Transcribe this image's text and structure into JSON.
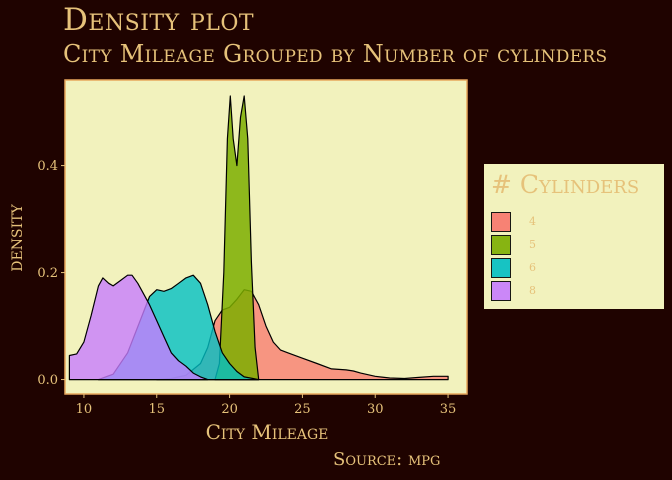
{
  "title": "Density plot",
  "subtitle": "City Mileage Grouped by Number of cylinders",
  "caption": "Source: mpg",
  "legend": {
    "title": "# Cylinders",
    "placement": "right",
    "items": [
      {
        "label": "4",
        "color": "#f8766d"
      },
      {
        "label": "5",
        "color": "#7cae00"
      },
      {
        "label": "6",
        "color": "#00bfc4"
      },
      {
        "label": "8",
        "color": "#c77cff"
      }
    ]
  },
  "colors": {
    "background": "#1f0300",
    "panel": "#f2f2bd",
    "text": "#e6c27a"
  },
  "chart_data": {
    "type": "area",
    "title": "Density plot",
    "subtitle": "City Mileage Grouped by Number of cylinders",
    "xlabel": "City Mileage",
    "ylabel": "density",
    "xlim": [
      8.7,
      36.3
    ],
    "ylim": [
      -0.027,
      0.56
    ],
    "xticks": [
      10,
      15,
      20,
      25,
      30,
      35
    ],
    "yticks": [
      0.0,
      0.2,
      0.4
    ],
    "ytick_labels": [
      "0.0",
      "0.2",
      "0.4"
    ],
    "grid": false,
    "series": [
      {
        "name": "4",
        "color": "#f8766d",
        "opacity": 0.75,
        "points": [
          [
            15,
            0
          ],
          [
            16,
            0.002
          ],
          [
            17,
            0.008
          ],
          [
            18,
            0.03
          ],
          [
            18.5,
            0.06
          ],
          [
            19,
            0.11
          ],
          [
            19.5,
            0.13
          ],
          [
            20,
            0.135
          ],
          [
            20.5,
            0.15
          ],
          [
            21,
            0.168
          ],
          [
            21.5,
            0.165
          ],
          [
            22,
            0.14
          ],
          [
            22.5,
            0.1
          ],
          [
            23,
            0.07
          ],
          [
            23.5,
            0.055
          ],
          [
            24,
            0.05
          ],
          [
            25,
            0.04
          ],
          [
            26,
            0.03
          ],
          [
            27,
            0.02
          ],
          [
            28,
            0.018
          ],
          [
            28.5,
            0.016
          ],
          [
            29,
            0.012
          ],
          [
            30,
            0.006
          ],
          [
            31,
            0.003
          ],
          [
            32,
            0.002
          ],
          [
            33,
            0.004
          ],
          [
            34,
            0.006
          ],
          [
            35,
            0.006
          ]
        ]
      },
      {
        "name": "5",
        "color": "#7cae00",
        "opacity": 0.85,
        "points": [
          [
            19,
            0
          ],
          [
            19.3,
            0.03
          ],
          [
            19.6,
            0.2
          ],
          [
            19.85,
            0.45
          ],
          [
            20.05,
            0.53
          ],
          [
            20.25,
            0.45
          ],
          [
            20.5,
            0.4
          ],
          [
            20.75,
            0.49
          ],
          [
            21,
            0.53
          ],
          [
            21.25,
            0.45
          ],
          [
            21.5,
            0.22
          ],
          [
            21.75,
            0.06
          ],
          [
            22,
            0
          ]
        ]
      },
      {
        "name": "6",
        "color": "#00bfc4",
        "opacity": 0.8,
        "points": [
          [
            11,
            0
          ],
          [
            12,
            0.01
          ],
          [
            13,
            0.05
          ],
          [
            14,
            0.12
          ],
          [
            14.5,
            0.155
          ],
          [
            15,
            0.168
          ],
          [
            15.5,
            0.165
          ],
          [
            16,
            0.17
          ],
          [
            16.5,
            0.18
          ],
          [
            17,
            0.19
          ],
          [
            17.5,
            0.195
          ],
          [
            18,
            0.18
          ],
          [
            18.5,
            0.14
          ],
          [
            19,
            0.09
          ],
          [
            19.5,
            0.05
          ],
          [
            20,
            0.03
          ],
          [
            20.5,
            0.015
          ],
          [
            21,
            0.005
          ],
          [
            22,
            0
          ]
        ]
      },
      {
        "name": "8",
        "color": "#c77cff",
        "opacity": 0.8,
        "points": [
          [
            9,
            0.045
          ],
          [
            9.5,
            0.048
          ],
          [
            10,
            0.07
          ],
          [
            10.5,
            0.12
          ],
          [
            11,
            0.175
          ],
          [
            11.3,
            0.19
          ],
          [
            11.7,
            0.18
          ],
          [
            12,
            0.175
          ],
          [
            12.5,
            0.185
          ],
          [
            13,
            0.195
          ],
          [
            13.3,
            0.195
          ],
          [
            13.7,
            0.18
          ],
          [
            14,
            0.165
          ],
          [
            14.5,
            0.14
          ],
          [
            15,
            0.11
          ],
          [
            15.5,
            0.08
          ],
          [
            16,
            0.05
          ],
          [
            16.5,
            0.035
          ],
          [
            17,
            0.025
          ],
          [
            17.5,
            0.012
          ],
          [
            18,
            0.005
          ],
          [
            18.5,
            0
          ]
        ]
      }
    ]
  }
}
